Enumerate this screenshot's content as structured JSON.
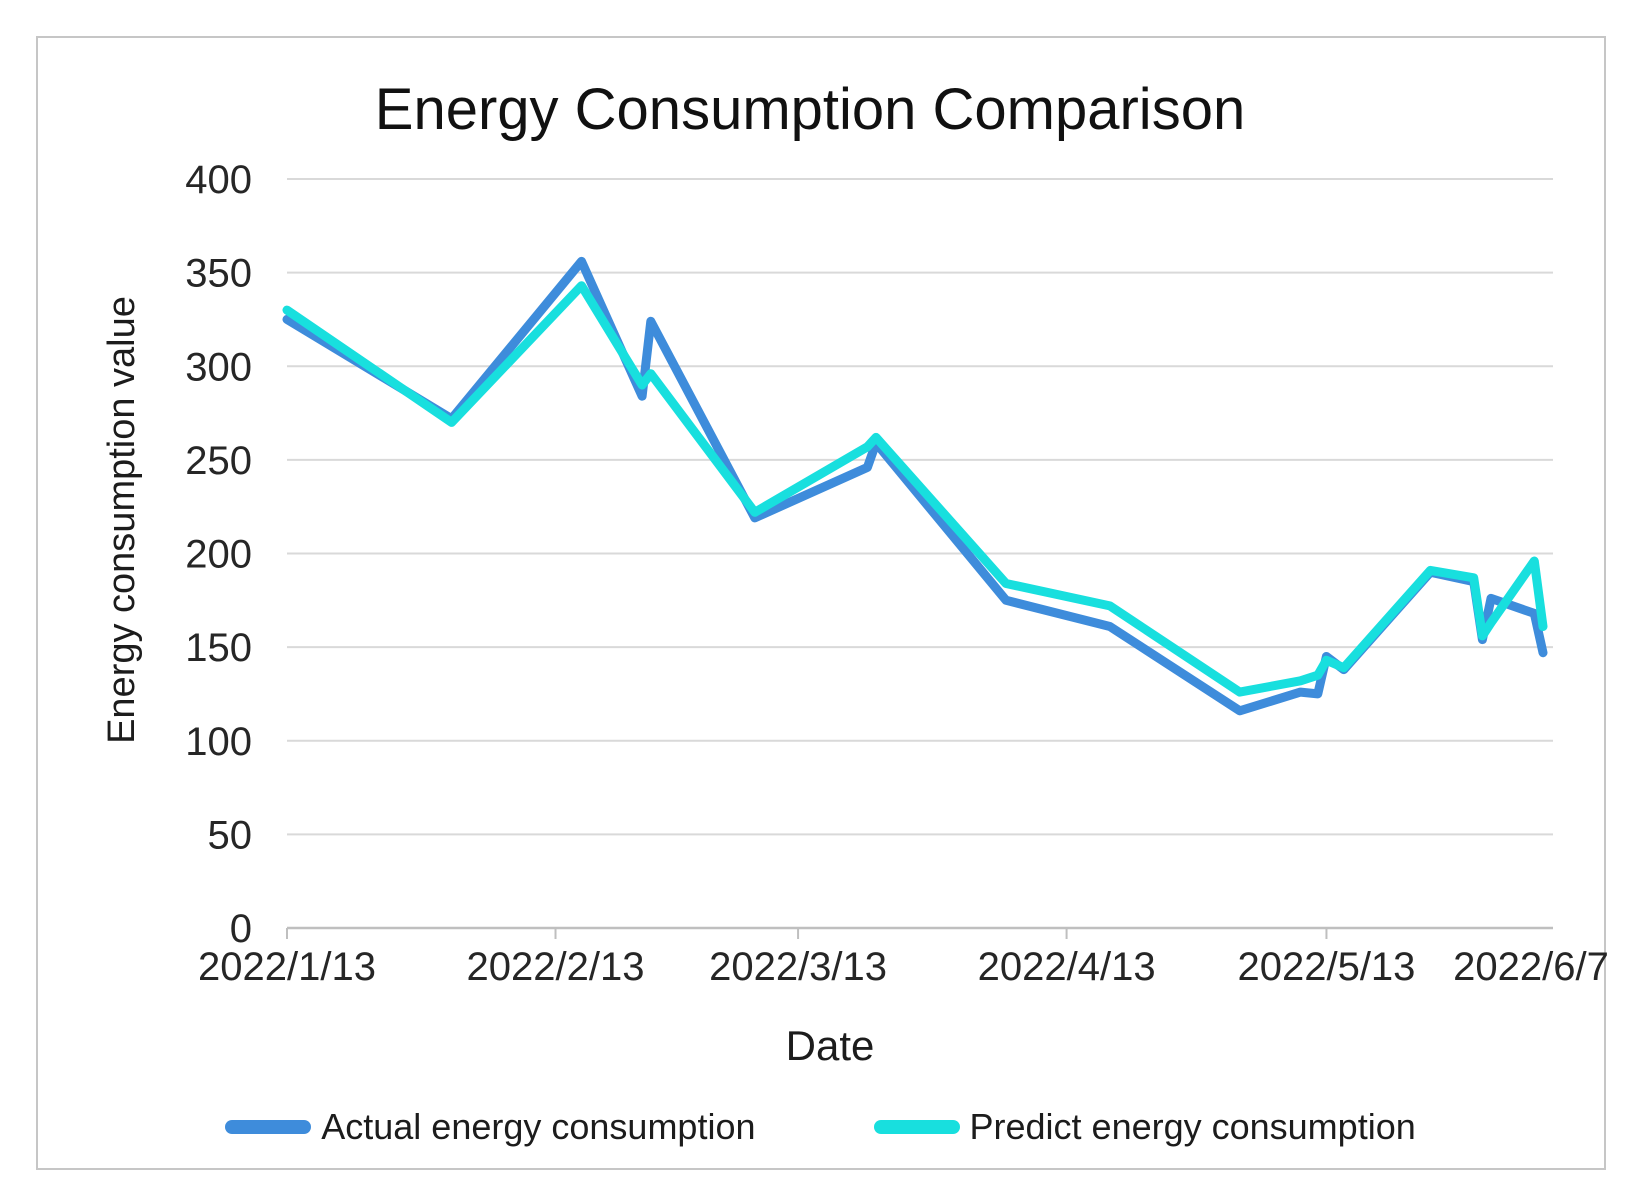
{
  "chart_data": {
    "type": "line",
    "title": "Energy Consumption Comparison",
    "xlabel": "Date",
    "ylabel": "Energy consumption value",
    "x_start_date": "2022/1/13",
    "x_end_date": "2022/6/7",
    "x_days_since_start": [
      0,
      19,
      34,
      41,
      42,
      54,
      67,
      68,
      83,
      95,
      110,
      117,
      119,
      120,
      122,
      132,
      137,
      138,
      139,
      144,
      145
    ],
    "series": [
      {
        "name": "Actual energy consumption",
        "color": "#3e8cdb",
        "values": [
          325,
          272,
          356,
          284,
          324,
          219,
          246,
          259,
          175,
          161,
          116,
          126,
          125,
          145,
          138,
          190,
          185,
          154,
          176,
          168,
          147
        ]
      },
      {
        "name": "Predict energy consumption",
        "color": "#18dfde",
        "values": [
          330,
          270,
          343,
          290,
          296,
          222,
          257,
          262,
          184,
          172,
          126,
          132,
          135,
          143,
          139,
          191,
          187,
          156,
          163,
          196,
          161
        ]
      }
    ],
    "x_ticks": [
      {
        "day": 0,
        "label": "2022/1/13"
      },
      {
        "day": 31,
        "label": "2022/2/13"
      },
      {
        "day": 59,
        "label": "2022/3/13"
      },
      {
        "day": 90,
        "label": "2022/4/13"
      },
      {
        "day": 120,
        "label": "2022/5/13"
      },
      {
        "day": 145,
        "label": "2022/6/7"
      }
    ],
    "y_ticks": [
      0,
      50,
      100,
      150,
      200,
      250,
      300,
      350,
      400
    ],
    "ylim": [
      0,
      400
    ],
    "xlim_days": [
      0,
      145
    ],
    "grid": "horizontal-only",
    "legend_position": "bottom"
  }
}
